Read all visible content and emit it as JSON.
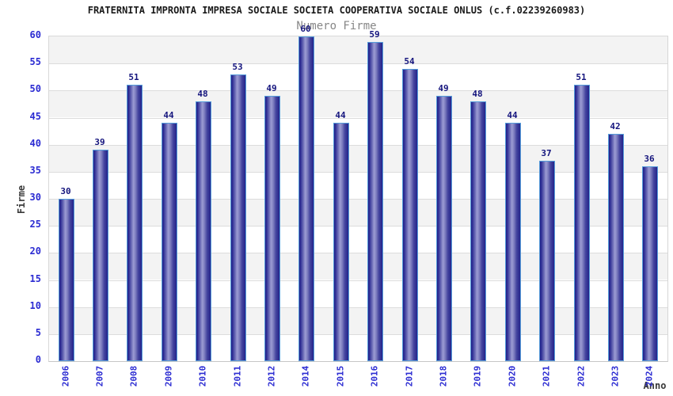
{
  "chart_data": {
    "type": "bar",
    "title": "FRATERNITA IMPRONTA IMPRESA SOCIALE SOCIETA COOPERATIVA SOCIALE ONLUS (c.f.02239260983)",
    "subtitle": "Numero Firme",
    "xlabel": "Anno",
    "ylabel": "Firme",
    "categories": [
      "2006",
      "2007",
      "2008",
      "2009",
      "2010",
      "2011",
      "2012",
      "2014",
      "2015",
      "2016",
      "2017",
      "2018",
      "2019",
      "2020",
      "2021",
      "2022",
      "2023",
      "2024"
    ],
    "values": [
      30,
      39,
      51,
      44,
      48,
      53,
      49,
      60,
      44,
      59,
      54,
      49,
      48,
      44,
      37,
      51,
      42,
      36
    ],
    "ylim": [
      0,
      60
    ],
    "ytick_step": 5,
    "grid": true,
    "legend_position": "none",
    "colors": {
      "bar_gradient_edge": "#23238a",
      "bar_gradient_mid": "#9c9cd4",
      "bar_border": "#569dda",
      "band_fill": "#f3f3f3",
      "gridline": "#dcdcdc",
      "tick_label": "#2b2bd2",
      "value_label": "#14147d",
      "title": "#1a1a1a",
      "subtitle": "#878787",
      "axis_title": "#3a3a3a",
      "background": "#ffffff"
    }
  }
}
